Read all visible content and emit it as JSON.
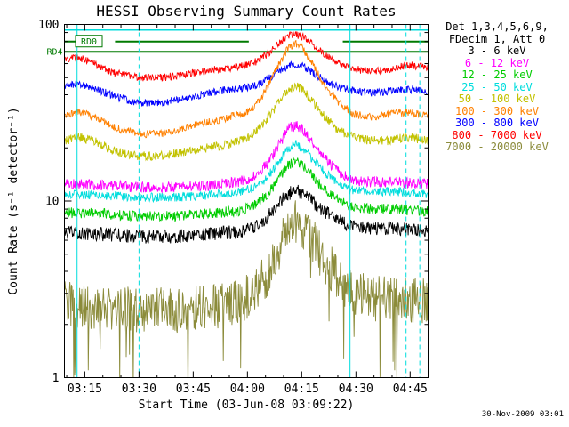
{
  "generated_timestamp": "30-Nov-2009 03:01",
  "chart_data": {
    "type": "line",
    "title": "HESSI Observing Summary Count Rates",
    "xlabel": "Start Time (03-Jun-08 03:09:22)",
    "ylabel": "Count Rate (s⁻¹ detector⁻¹)",
    "yscale": "log",
    "ylim": [
      1,
      100
    ],
    "xlim_minutes": [
      0,
      100.6
    ],
    "grid": false,
    "legend_position": "right",
    "noise_step_minutes": 0.15,
    "x_minor_tick_start": 0.63,
    "x_minor_tick_step": 5,
    "x_ticks": [
      {
        "t": 5.63,
        "label": "03:15"
      },
      {
        "t": 20.63,
        "label": "03:30"
      },
      {
        "t": 35.63,
        "label": "03:45"
      },
      {
        "t": 50.63,
        "label": "04:00"
      },
      {
        "t": 65.63,
        "label": "04:15"
      },
      {
        "t": 80.63,
        "label": "04:30"
      },
      {
        "t": 95.63,
        "label": "04:45"
      }
    ],
    "y_ticks": [
      {
        "v": 1,
        "label": "1"
      },
      {
        "v": 10,
        "label": "10"
      },
      {
        "v": 100,
        "label": "100"
      }
    ],
    "legend_header": [
      "Det 1,3,4,5,6,9,",
      "FDecim 1, Att 0"
    ],
    "draw_order": [
      8,
      0,
      2,
      3,
      1,
      4,
      6,
      5,
      7
    ],
    "series": [
      {
        "name": "3 - 6 keV",
        "color": "#000000",
        "noise": 0.09,
        "points": [
          [
            0,
            6.6
          ],
          [
            10,
            6.5
          ],
          [
            20,
            6.3
          ],
          [
            30,
            6.3
          ],
          [
            40,
            6.5
          ],
          [
            48,
            6.7
          ],
          [
            52,
            7.0
          ],
          [
            56,
            8.0
          ],
          [
            60,
            10.0
          ],
          [
            62,
            11.0
          ],
          [
            64,
            11.5
          ],
          [
            66,
            11.0
          ],
          [
            69,
            9.8
          ],
          [
            72,
            8.7
          ],
          [
            76,
            7.7
          ],
          [
            80,
            7.2
          ],
          [
            86,
            7.0
          ],
          [
            92,
            7.0
          ],
          [
            100.6,
            6.8
          ]
        ]
      },
      {
        "name": "6 - 12 keV",
        "color": "#FF00FF",
        "noise": 0.07,
        "points": [
          [
            0,
            12.5
          ],
          [
            10,
            12.3
          ],
          [
            20,
            12.0
          ],
          [
            30,
            12.0
          ],
          [
            40,
            12.3
          ],
          [
            48,
            12.8
          ],
          [
            52,
            13.5
          ],
          [
            56,
            16.0
          ],
          [
            60,
            22.0
          ],
          [
            62,
            26.0
          ],
          [
            64,
            27.0
          ],
          [
            66,
            25.5
          ],
          [
            69,
            21.0
          ],
          [
            72,
            17.5
          ],
          [
            76,
            14.5
          ],
          [
            80,
            13.0
          ],
          [
            86,
            12.8
          ],
          [
            92,
            12.8
          ],
          [
            100.6,
            12.5
          ]
        ]
      },
      {
        "name": "12 - 25 keV",
        "color": "#00CC00",
        "noise": 0.07,
        "points": [
          [
            0,
            8.6
          ],
          [
            10,
            8.5
          ],
          [
            20,
            8.2
          ],
          [
            30,
            8.2
          ],
          [
            40,
            8.5
          ],
          [
            48,
            8.8
          ],
          [
            52,
            9.3
          ],
          [
            56,
            10.8
          ],
          [
            60,
            14.0
          ],
          [
            62,
            16.0
          ],
          [
            64,
            17.0
          ],
          [
            66,
            16.0
          ],
          [
            69,
            13.5
          ],
          [
            72,
            11.5
          ],
          [
            76,
            10.0
          ],
          [
            80,
            9.2
          ],
          [
            86,
            9.0
          ],
          [
            92,
            9.0
          ],
          [
            100.6,
            8.7
          ]
        ]
      },
      {
        "name": "25 - 50 keV",
        "color": "#00DDDD",
        "noise": 0.06,
        "points": [
          [
            0,
            11.0
          ],
          [
            10,
            10.8
          ],
          [
            20,
            10.5
          ],
          [
            30,
            10.5
          ],
          [
            40,
            10.8
          ],
          [
            48,
            11.2
          ],
          [
            52,
            11.8
          ],
          [
            56,
            13.5
          ],
          [
            60,
            17.5
          ],
          [
            62,
            20.0
          ],
          [
            64,
            21.0
          ],
          [
            66,
            20.0
          ],
          [
            69,
            17.0
          ],
          [
            72,
            14.5
          ],
          [
            76,
            12.5
          ],
          [
            80,
            11.5
          ],
          [
            86,
            11.3
          ],
          [
            92,
            11.3
          ],
          [
            100.6,
            11.0
          ]
        ]
      },
      {
        "name": "50 - 100 keV",
        "color": "#C2C200",
        "noise": 0.06,
        "points": [
          [
            0,
            22
          ],
          [
            4,
            23
          ],
          [
            8,
            22
          ],
          [
            14,
            19
          ],
          [
            20,
            18
          ],
          [
            27,
            18
          ],
          [
            33,
            19
          ],
          [
            40,
            20
          ],
          [
            46,
            21
          ],
          [
            51,
            23
          ],
          [
            54,
            26
          ],
          [
            57,
            31
          ],
          [
            60,
            38
          ],
          [
            62,
            43
          ],
          [
            64,
            45
          ],
          [
            66,
            43
          ],
          [
            69,
            36
          ],
          [
            72,
            30
          ],
          [
            76,
            25
          ],
          [
            80,
            23
          ],
          [
            85,
            22
          ],
          [
            90,
            22
          ],
          [
            95,
            23
          ],
          [
            100.6,
            22
          ]
        ]
      },
      {
        "name": "100 - 300 keV",
        "color": "#FF8000",
        "noise": 0.05,
        "points": [
          [
            0,
            31
          ],
          [
            4,
            32
          ],
          [
            8,
            30
          ],
          [
            14,
            26
          ],
          [
            20,
            24
          ],
          [
            27,
            24
          ],
          [
            33,
            26
          ],
          [
            40,
            28
          ],
          [
            46,
            30
          ],
          [
            51,
            32
          ],
          [
            54,
            37
          ],
          [
            57,
            48
          ],
          [
            60,
            63
          ],
          [
            62,
            74
          ],
          [
            64,
            78
          ],
          [
            66,
            73
          ],
          [
            69,
            58
          ],
          [
            72,
            45
          ],
          [
            76,
            36
          ],
          [
            80,
            31
          ],
          [
            85,
            30
          ],
          [
            90,
            31
          ],
          [
            95,
            32
          ],
          [
            100.6,
            30
          ]
        ]
      },
      {
        "name": "300 - 800 keV",
        "color": "#0000FF",
        "noise": 0.05,
        "points": [
          [
            0,
            45
          ],
          [
            4,
            46
          ],
          [
            8,
            44
          ],
          [
            14,
            39
          ],
          [
            20,
            36
          ],
          [
            27,
            36
          ],
          [
            33,
            38
          ],
          [
            40,
            41
          ],
          [
            46,
            43
          ],
          [
            51,
            44
          ],
          [
            54,
            46
          ],
          [
            57,
            50
          ],
          [
            60,
            55
          ],
          [
            62,
            58
          ],
          [
            64,
            60
          ],
          [
            66,
            58
          ],
          [
            69,
            53
          ],
          [
            72,
            48
          ],
          [
            76,
            44
          ],
          [
            80,
            42
          ],
          [
            85,
            41
          ],
          [
            90,
            42
          ],
          [
            95,
            43
          ],
          [
            100.6,
            42
          ]
        ]
      },
      {
        "name": "800 - 7000 keV",
        "color": "#FF0000",
        "noise": 0.05,
        "points": [
          [
            0,
            63
          ],
          [
            4,
            65
          ],
          [
            8,
            60
          ],
          [
            14,
            53
          ],
          [
            20,
            50
          ],
          [
            27,
            50
          ],
          [
            33,
            52
          ],
          [
            40,
            55
          ],
          [
            46,
            57
          ],
          [
            51,
            59
          ],
          [
            54,
            63
          ],
          [
            57,
            70
          ],
          [
            60,
            80
          ],
          [
            62,
            86
          ],
          [
            64,
            88
          ],
          [
            66,
            85
          ],
          [
            69,
            76
          ],
          [
            72,
            67
          ],
          [
            76,
            60
          ],
          [
            80,
            56
          ],
          [
            85,
            54
          ],
          [
            90,
            56
          ],
          [
            95,
            59
          ],
          [
            100.6,
            57
          ]
        ]
      },
      {
        "name": "7000 - 20000 keV",
        "color": "#8B8B3A",
        "noise": 0.3,
        "spike_prob": 0.04,
        "spike_factor": 0.45,
        "points": [
          [
            0,
            2.6
          ],
          [
            10,
            2.5
          ],
          [
            20,
            2.4
          ],
          [
            30,
            2.4
          ],
          [
            40,
            2.5
          ],
          [
            48,
            2.7
          ],
          [
            52,
            3.0
          ],
          [
            56,
            3.8
          ],
          [
            60,
            5.8
          ],
          [
            62,
            7.0
          ],
          [
            64,
            7.5
          ],
          [
            66,
            7.0
          ],
          [
            69,
            5.8
          ],
          [
            72,
            4.6
          ],
          [
            76,
            3.6
          ],
          [
            80,
            3.0
          ],
          [
            86,
            2.8
          ],
          [
            92,
            2.8
          ],
          [
            100.6,
            2.7
          ]
        ]
      }
    ],
    "overlays": {
      "hlines": [
        {
          "label": "RD0",
          "value": 80,
          "color": "#007A00",
          "width": 2,
          "segments": [
            [
              0,
              3.2
            ],
            [
              14,
              51
            ],
            [
              77,
              100.6
            ]
          ]
        },
        {
          "label": "RD4",
          "value": 70,
          "color": "#007A00",
          "width": 2,
          "segments": [
            [
              0,
              100.6
            ]
          ]
        },
        {
          "label": "",
          "value": 93,
          "color": "#00DDDD",
          "width": 1.5,
          "segments": [
            [
              0,
              100.6
            ]
          ]
        }
      ],
      "vlines": [
        {
          "t": 3.5,
          "color": "#00DDDD",
          "style": "solid"
        },
        {
          "t": 20.63,
          "color": "#00DDDD",
          "style": "dashed"
        },
        {
          "t": 79.0,
          "color": "#00DDDD",
          "style": "solid"
        },
        {
          "t": 94.5,
          "color": "#00DDDD",
          "style": "dashed"
        },
        {
          "t": 98.3,
          "color": "#00DDDD",
          "style": "dashed"
        }
      ]
    }
  }
}
